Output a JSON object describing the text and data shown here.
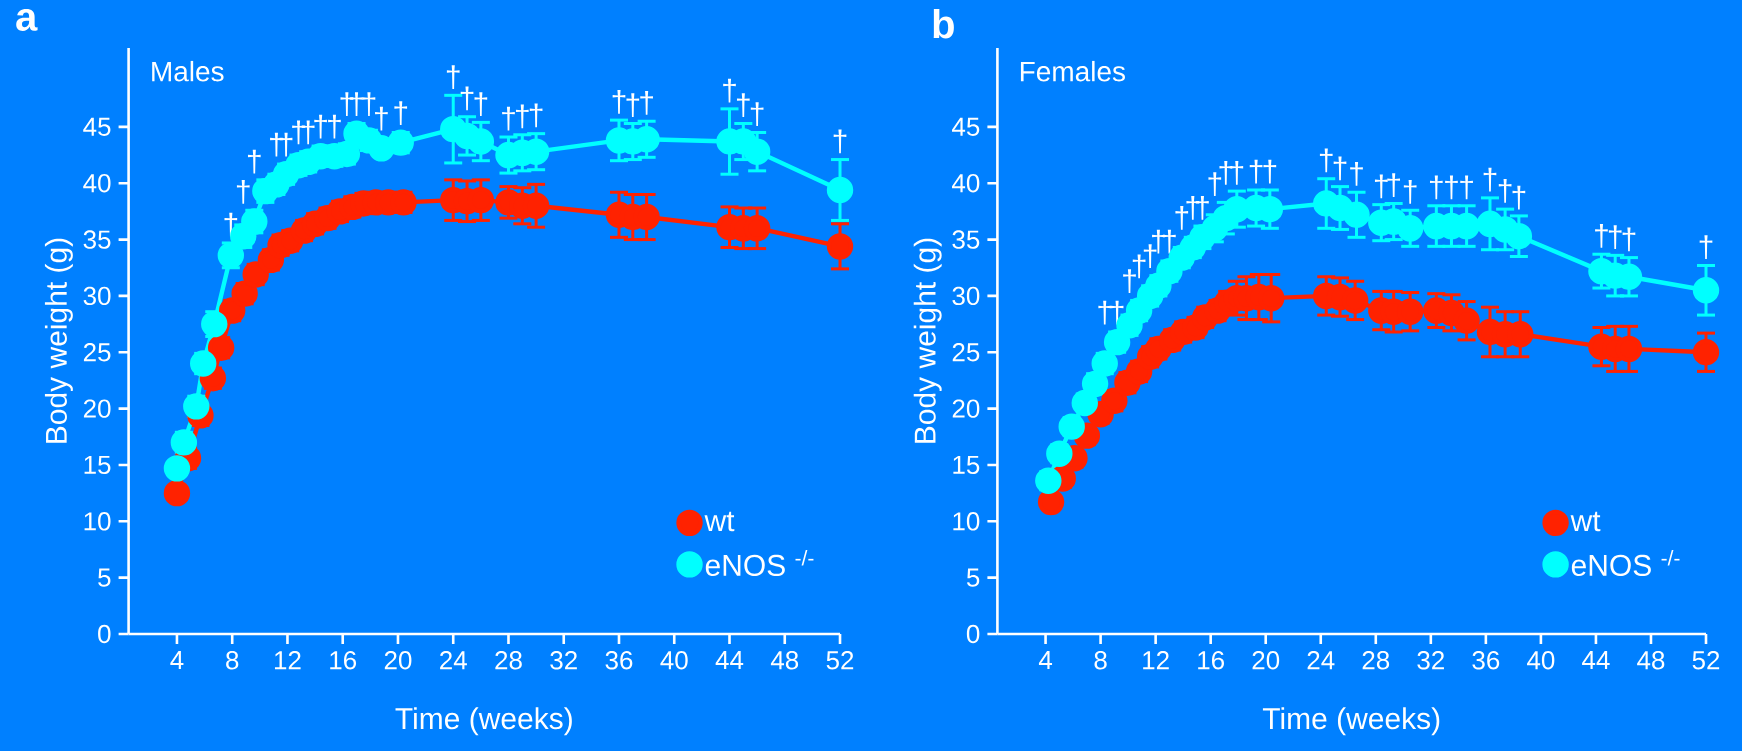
{
  "chart_data": [
    {
      "type": "line",
      "title": "a",
      "subtitle": "Males",
      "xlabel": "Time (weeks)",
      "ylabel": "Body weight (g)",
      "xlim": [
        0.5,
        52
      ],
      "ylim": [
        0,
        52
      ],
      "xticks": [
        4,
        8,
        12,
        16,
        20,
        24,
        28,
        32,
        36,
        40,
        44,
        48,
        52
      ],
      "yticks": [
        0,
        5,
        10,
        15,
        20,
        25,
        30,
        35,
        40,
        45
      ],
      "legend": "bottom right",
      "marker": "circle",
      "line_style": "solid",
      "series": [
        {
          "name": "wt",
          "color": "#ff2200",
          "x": [
            4,
            4.8,
            5.7,
            6.6,
            7.2,
            8,
            8.9,
            9.7,
            10.8,
            11.5,
            12.2,
            13.2,
            14,
            14.9,
            15.8,
            16.7,
            17.5,
            18.4,
            19.3,
            20.4,
            24,
            25,
            26,
            28,
            29,
            30,
            36,
            37,
            38,
            44,
            45,
            46,
            52
          ],
          "values": [
            12.5,
            15.6,
            19.4,
            22.7,
            25.4,
            28.7,
            30.2,
            31.9,
            33.2,
            34.5,
            34.9,
            35.8,
            36.4,
            36.9,
            37.5,
            37.9,
            38.2,
            38.3,
            38.3,
            38.3,
            38.5,
            38.4,
            38.5,
            38.3,
            38.0,
            38.0,
            37.2,
            37.0,
            37.0,
            36.1,
            36.0,
            36.0,
            34.4
          ],
          "errors": [
            0.6,
            0.9,
            0.9,
            0.9,
            0.9,
            0.9,
            0.9,
            0.9,
            0.9,
            0.9,
            0.9,
            0.9,
            0.9,
            0.9,
            0.9,
            0.9,
            0.9,
            0.9,
            0.9,
            0.9,
            1.8,
            1.8,
            1.8,
            1.4,
            1.6,
            1.9,
            2.0,
            2.0,
            2.0,
            1.8,
            1.8,
            1.8,
            2.0
          ]
        },
        {
          "name": "eNOS $^{-/-}$",
          "color": "#00ffff",
          "x": [
            4,
            4.5,
            5.4,
            5.9,
            6.7,
            7.9,
            8.8,
            9.6,
            10.4,
            11.2,
            11.9,
            12.8,
            13.5,
            14.4,
            15.4,
            16.3,
            17,
            17.9,
            18.8,
            20.2,
            24,
            25,
            26,
            28,
            29,
            30,
            36,
            37,
            38,
            44,
            45,
            46,
            52
          ],
          "values": [
            14.7,
            17.0,
            20.2,
            24.0,
            27.5,
            33.6,
            35.3,
            36.6,
            39.3,
            39.9,
            40.8,
            41.6,
            41.9,
            42.4,
            42.4,
            42.6,
            44.4,
            43.8,
            43.1,
            43.6,
            44.8,
            44.2,
            43.7,
            42.5,
            42.7,
            42.8,
            43.8,
            43.7,
            43.9,
            43.7,
            43.7,
            42.8,
            39.4
          ],
          "errors": [
            0.6,
            0.9,
            0.9,
            0.9,
            1.1,
            1.1,
            1.0,
            1.0,
            1.0,
            0.9,
            0.9,
            0.9,
            0.9,
            0.9,
            0.9,
            0.9,
            0.9,
            0.9,
            0.7,
            0.9,
            3.0,
            1.7,
            1.7,
            1.6,
            1.6,
            1.6,
            1.8,
            1.6,
            1.6,
            2.9,
            1.6,
            1.7,
            2.7
          ]
        }
      ],
      "annotations": [
        {
          "text": "†",
          "x": 7.9,
          "y": 33.6
        },
        {
          "text": "†",
          "x": 8.8,
          "y": 35.3
        },
        {
          "text": "†",
          "x": 9.6,
          "y": 36.6
        },
        {
          "text": "†",
          "x": 11.2,
          "y": 39.9
        },
        {
          "text": "†",
          "x": 11.9,
          "y": 40.8
        },
        {
          "text": "†",
          "x": 12.8,
          "y": 41.6
        },
        {
          "text": "†",
          "x": 13.5,
          "y": 41.9
        },
        {
          "text": "†",
          "x": 14.4,
          "y": 42.4
        },
        {
          "text": "†",
          "x": 15.4,
          "y": 42.4
        },
        {
          "text": "†",
          "x": 16.3,
          "y": 42.6
        },
        {
          "text": "†",
          "x": 17,
          "y": 44.4
        },
        {
          "text": "†",
          "x": 17.9,
          "y": 43.8
        },
        {
          "text": "†",
          "x": 18.8,
          "y": 43.1
        },
        {
          "text": "†",
          "x": 20.2,
          "y": 43.6
        },
        {
          "text": "†",
          "x": 24,
          "y": 44.8
        },
        {
          "text": "†",
          "x": 25,
          "y": 44.2
        },
        {
          "text": "†",
          "x": 26,
          "y": 43.7
        },
        {
          "text": "†",
          "x": 28,
          "y": 42.5
        },
        {
          "text": "†",
          "x": 29,
          "y": 42.7
        },
        {
          "text": "†",
          "x": 30,
          "y": 42.8
        },
        {
          "text": "†",
          "x": 36,
          "y": 43.8
        },
        {
          "text": "†",
          "x": 37,
          "y": 43.7
        },
        {
          "text": "†",
          "x": 38,
          "y": 43.9
        },
        {
          "text": "†",
          "x": 44,
          "y": 43.7
        },
        {
          "text": "†",
          "x": 45,
          "y": 43.7
        },
        {
          "text": "†",
          "x": 46,
          "y": 42.8
        },
        {
          "text": "†",
          "x": 52,
          "y": 39.4
        }
      ]
    },
    {
      "type": "line",
      "title": "b",
      "subtitle": "Females",
      "xlabel": "Time (weeks)",
      "ylabel": "Body weight (g)",
      "xlim": [
        0.5,
        52
      ],
      "ylim": [
        0,
        52
      ],
      "xticks": [
        4,
        8,
        12,
        16,
        20,
        24,
        28,
        32,
        36,
        40,
        44,
        48,
        52
      ],
      "yticks": [
        0,
        5,
        10,
        15,
        20,
        25,
        30,
        35,
        40,
        45
      ],
      "legend": "bottom right",
      "marker": "circle",
      "line_style": "solid",
      "series": [
        {
          "name": "wt",
          "color": "#ff2200",
          "x": [
            4.4,
            5.25,
            6.1,
            7,
            8,
            9,
            9.95,
            10.8,
            11.6,
            12.2,
            13.2,
            14,
            14.9,
            15.6,
            16.5,
            17.2,
            17.9,
            18.6,
            19.5,
            20.4,
            24.4,
            25.4,
            26.5,
            28.4,
            29.3,
            30.5,
            32.4,
            33.5,
            34.6,
            36.3,
            37.4,
            38.5,
            44.4,
            45.4,
            46.4,
            52
          ],
          "values": [
            11.7,
            13.8,
            15.6,
            17.6,
            19.5,
            20.7,
            22.3,
            23.3,
            24.6,
            25.3,
            26.1,
            26.8,
            27.2,
            28.1,
            28.7,
            29.4,
            29.8,
            29.8,
            29.9,
            29.8,
            30.0,
            29.9,
            29.6,
            28.7,
            28.6,
            28.6,
            28.7,
            28.5,
            27.8,
            26.8,
            26.6,
            26.6,
            25.5,
            25.3,
            25.3,
            25.0
          ],
          "errors": [
            0.5,
            0.8,
            0.8,
            0.8,
            0.8,
            0.9,
            0.9,
            0.9,
            0.9,
            0.9,
            0.9,
            0.9,
            0.9,
            0.9,
            0.9,
            1.0,
            1.5,
            1.9,
            2.0,
            2.1,
            1.7,
            1.7,
            1.7,
            1.7,
            1.8,
            1.7,
            1.5,
            1.6,
            1.7,
            2.2,
            2.0,
            2.0,
            1.7,
            2.0,
            2.0,
            1.7
          ]
        },
        {
          "name": "eNOS $^{-/-}$",
          "color": "#00ffff",
          "x": [
            4.2,
            5,
            5.9,
            6.85,
            7.6,
            8.3,
            9.2,
            10.1,
            10.8,
            11.6,
            12.2,
            13,
            13.9,
            14.7,
            15.4,
            16.3,
            17.1,
            17.9,
            19.3,
            20.3,
            24.4,
            25.4,
            26.6,
            28.4,
            29.3,
            30.5,
            32.4,
            33.5,
            34.6,
            36.3,
            37.4,
            38.4,
            44.4,
            45.4,
            46.4,
            52
          ],
          "values": [
            13.6,
            16.0,
            18.4,
            20.5,
            22.2,
            24.0,
            25.9,
            27.4,
            28.7,
            30.0,
            30.9,
            32.2,
            33.4,
            34.3,
            35.2,
            36.0,
            36.9,
            37.7,
            37.8,
            37.7,
            38.2,
            37.8,
            37.2,
            36.5,
            36.6,
            36.0,
            36.2,
            36.2,
            36.2,
            36.4,
            35.9,
            35.3,
            32.2,
            31.8,
            31.7,
            30.5
          ],
          "errors": [
            0.8,
            0.8,
            0.8,
            0.8,
            0.9,
            0.9,
            0.9,
            0.9,
            0.9,
            0.9,
            0.9,
            0.9,
            0.9,
            0.9,
            1.0,
            1.2,
            1.4,
            1.6,
            1.6,
            1.7,
            2.2,
            1.9,
            2.0,
            1.6,
            1.6,
            1.6,
            1.8,
            1.8,
            1.8,
            2.3,
            1.8,
            1.8,
            1.5,
            1.8,
            1.7,
            2.2
          ]
        }
      ],
      "annotations": [
        {
          "text": "†",
          "x": 8.3,
          "y": 24.0
        },
        {
          "text": "†",
          "x": 9.2,
          "y": 25.9
        },
        {
          "text": "†",
          "x": 10.1,
          "y": 27.4
        },
        {
          "text": "†",
          "x": 10.8,
          "y": 28.7
        },
        {
          "text": "†",
          "x": 11.6,
          "y": 30.0
        },
        {
          "text": "†",
          "x": 12.2,
          "y": 30.9
        },
        {
          "text": "†",
          "x": 13,
          "y": 32.2
        },
        {
          "text": "†",
          "x": 13.9,
          "y": 33.4
        },
        {
          "text": "†",
          "x": 14.7,
          "y": 34.3
        },
        {
          "text": "†",
          "x": 15.4,
          "y": 35.2
        },
        {
          "text": "†",
          "x": 16.3,
          "y": 36.0
        },
        {
          "text": "†",
          "x": 17.1,
          "y": 36.9
        },
        {
          "text": "†",
          "x": 17.9,
          "y": 37.7
        },
        {
          "text": "†",
          "x": 19.3,
          "y": 37.8
        },
        {
          "text": "†",
          "x": 20.3,
          "y": 37.7
        },
        {
          "text": "†",
          "x": 24.4,
          "y": 38.2
        },
        {
          "text": "†",
          "x": 25.4,
          "y": 37.8
        },
        {
          "text": "†",
          "x": 26.6,
          "y": 37.2
        },
        {
          "text": "†",
          "x": 28.4,
          "y": 36.5
        },
        {
          "text": "†",
          "x": 29.3,
          "y": 36.6
        },
        {
          "text": "†",
          "x": 30.5,
          "y": 36.0
        },
        {
          "text": "†",
          "x": 32.4,
          "y": 36.2
        },
        {
          "text": "†",
          "x": 33.5,
          "y": 36.2
        },
        {
          "text": "†",
          "x": 34.6,
          "y": 36.2
        },
        {
          "text": "†",
          "x": 36.3,
          "y": 36.4
        },
        {
          "text": "†",
          "x": 37.4,
          "y": 35.9
        },
        {
          "text": "†",
          "x": 38.4,
          "y": 35.3
        },
        {
          "text": "†",
          "x": 44.4,
          "y": 32.2
        },
        {
          "text": "†",
          "x": 45.4,
          "y": 31.8
        },
        {
          "text": "†",
          "x": 46.4,
          "y": 31.7
        },
        {
          "text": "†",
          "x": 52,
          "y": 30.5
        }
      ]
    }
  ]
}
